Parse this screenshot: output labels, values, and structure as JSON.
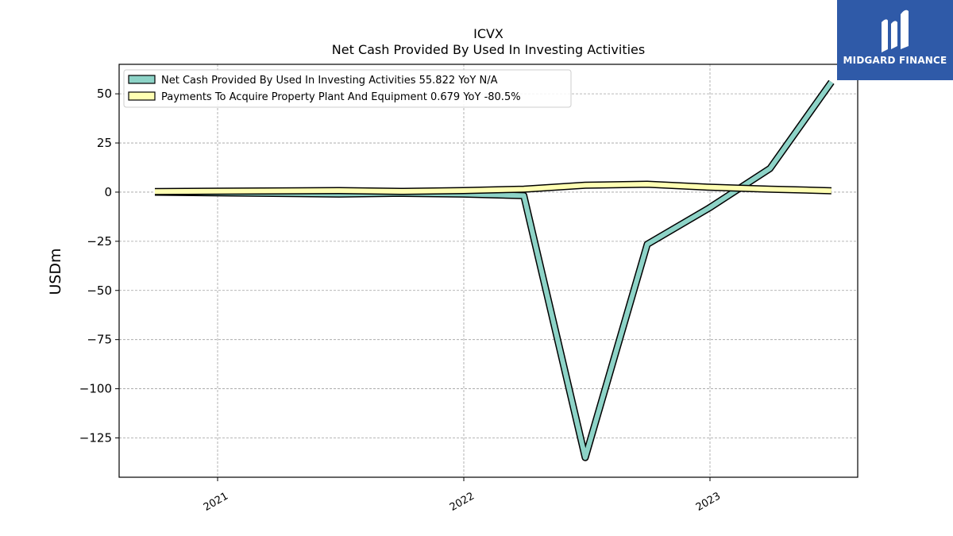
{
  "logo": {
    "text": "MIDGARD FINANCE",
    "background": "#2f5aa8"
  },
  "chart_data": {
    "type": "line",
    "title": "ICVX",
    "subtitle": "Net Cash Provided By Used In Investing Activities",
    "ylabel": "USDm",
    "xlabel": "",
    "ylim": [
      -145,
      65
    ],
    "yticks": [
      50,
      25,
      0,
      -25,
      -50,
      -75,
      -100,
      -125
    ],
    "ytick_labels": [
      "50",
      "25",
      "0",
      "−25",
      "−50",
      "−75",
      "−100",
      "−125"
    ],
    "xlim": [
      "2020-08-08",
      "2023-08-08"
    ],
    "xticks": [
      "2021-01-01",
      "2022-01-01",
      "2023-01-01"
    ],
    "xtick_labels": [
      "2021",
      "2022",
      "2023"
    ],
    "grid": true,
    "legend_position": "top-left",
    "series": [
      {
        "name": "Net Cash Provided By Used In Investing Activities  55.822 YoY N/A",
        "color": "#8dd3c7",
        "x": [
          "2020-09-30",
          "2021-06-30",
          "2021-09-30",
          "2021-12-31",
          "2022-03-31",
          "2022-06-30",
          "2022-09-30",
          "2022-12-31",
          "2023-03-31",
          "2023-06-30"
        ],
        "y": [
          0.0,
          -1.0,
          -0.6,
          -1.0,
          -1.8,
          -135.0,
          -26.5,
          -8.0,
          12.0,
          56.0
        ]
      },
      {
        "name": "Payments To Acquire Property Plant And Equipment  0.679 YoY -80.5%",
        "color": "#ffffb3",
        "x": [
          "2020-09-30",
          "2021-06-30",
          "2021-09-30",
          "2021-12-31",
          "2022-03-31",
          "2022-06-30",
          "2022-09-30",
          "2022-12-31",
          "2023-03-31",
          "2023-06-30"
        ],
        "y": [
          0.3,
          0.8,
          0.4,
          0.8,
          1.5,
          3.5,
          4.0,
          2.5,
          1.5,
          0.7
        ]
      }
    ]
  }
}
